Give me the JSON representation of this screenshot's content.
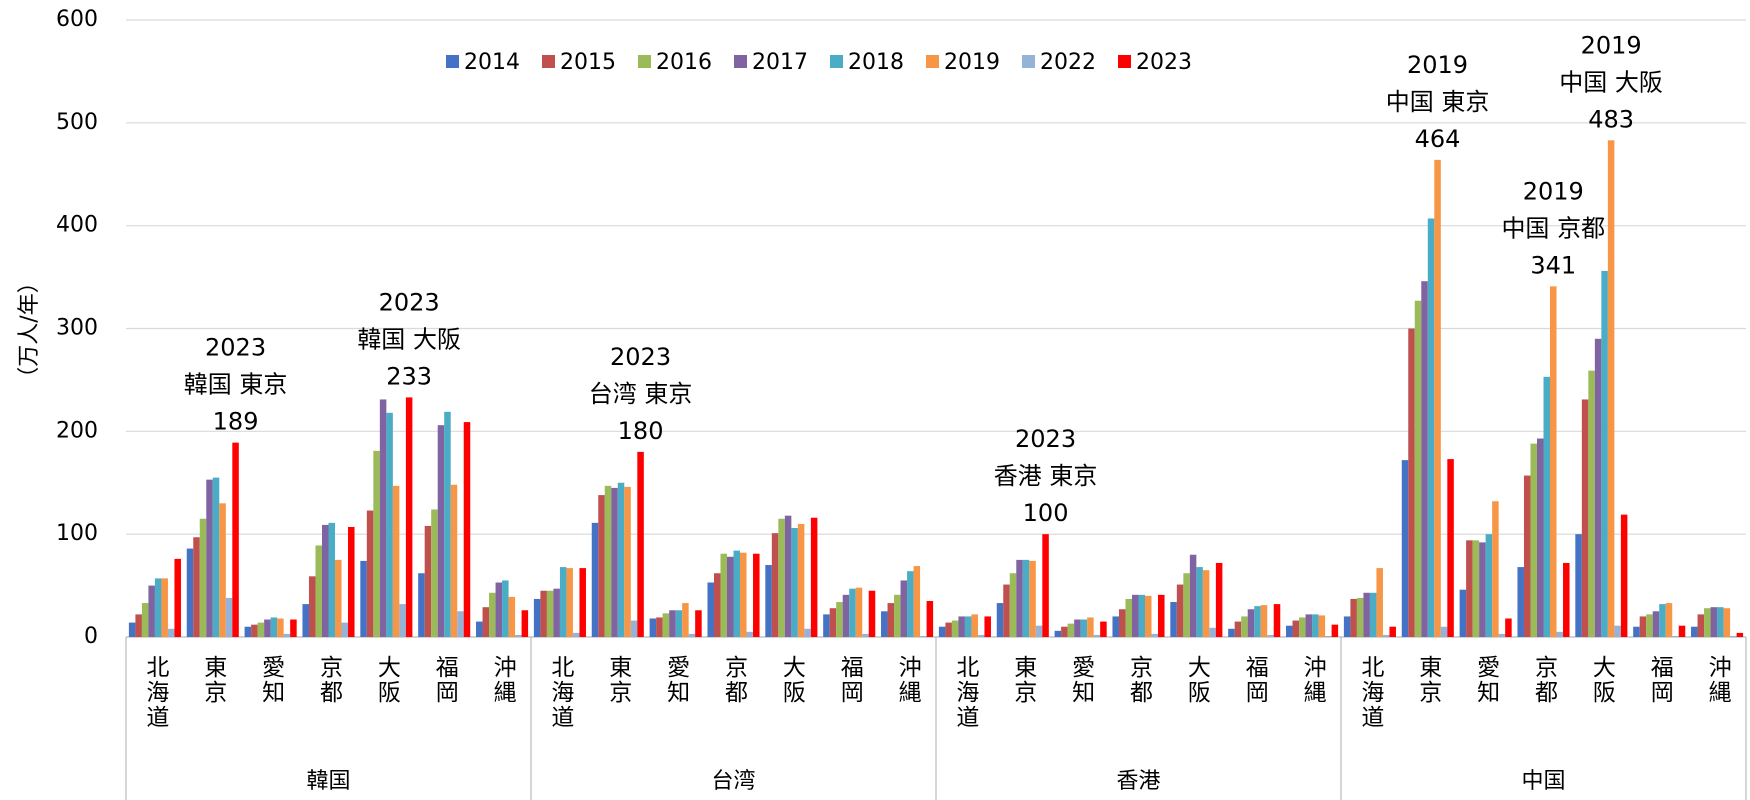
{
  "chart_data": {
    "type": "bar",
    "y_label": "（万人/年）",
    "category_groups": [
      "韓国",
      "台湾",
      "香港",
      "中国"
    ],
    "categories": [
      "北海道",
      "東京",
      "愛知",
      "京都",
      "大阪",
      "福岡",
      "沖縄",
      "北海道",
      "東京",
      "愛知",
      "京都",
      "大阪",
      "福岡",
      "沖縄",
      "北海道",
      "東京",
      "愛知",
      "京都",
      "大阪",
      "福岡",
      "沖縄",
      "北海道",
      "東京",
      "愛知",
      "京都",
      "大阪",
      "福岡",
      "沖縄"
    ],
    "series": [
      {
        "name": "2014",
        "color": "#4472c4",
        "values": [
          14,
          86,
          10,
          32,
          74,
          62,
          15,
          37,
          111,
          18,
          53,
          70,
          22,
          25,
          10,
          33,
          6,
          20,
          34,
          8,
          11,
          20,
          172,
          46,
          68,
          100,
          10,
          10
        ]
      },
      {
        "name": "2015",
        "color": "#c0504d",
        "values": [
          22,
          97,
          12,
          59,
          123,
          108,
          29,
          45,
          138,
          19,
          62,
          101,
          28,
          33,
          14,
          51,
          10,
          27,
          51,
          15,
          16,
          37,
          300,
          94,
          157,
          231,
          20,
          22
        ]
      },
      {
        "name": "2016",
        "color": "#9bbb59",
        "values": [
          33,
          115,
          14,
          89,
          181,
          124,
          43,
          45,
          147,
          23,
          81,
          115,
          34,
          41,
          16,
          62,
          13,
          37,
          62,
          20,
          19,
          38,
          327,
          94,
          188,
          259,
          22,
          28
        ]
      },
      {
        "name": "2017",
        "color": "#8064a2",
        "values": [
          50,
          153,
          17,
          109,
          231,
          206,
          53,
          47,
          145,
          26,
          78,
          118,
          41,
          55,
          20,
          75,
          17,
          41,
          80,
          27,
          22,
          43,
          346,
          92,
          193,
          290,
          25,
          29
        ]
      },
      {
        "name": "2018",
        "color": "#4bacc6",
        "values": [
          57,
          155,
          19,
          111,
          218,
          219,
          55,
          68,
          150,
          26,
          84,
          106,
          47,
          64,
          20,
          75,
          17,
          41,
          68,
          30,
          22,
          43,
          407,
          100,
          253,
          356,
          32,
          29
        ]
      },
      {
        "name": "2019",
        "color": "#f79646",
        "values": [
          57,
          130,
          18,
          75,
          147,
          148,
          39,
          67,
          146,
          33,
          82,
          110,
          48,
          69,
          22,
          74,
          19,
          40,
          65,
          31,
          21,
          67,
          464,
          132,
          341,
          483,
          33,
          28
        ]
      },
      {
        "name": "2022",
        "color": "#95b3d7",
        "values": [
          8,
          38,
          3,
          14,
          32,
          25,
          2,
          4,
          16,
          3,
          5,
          8,
          3,
          1,
          2,
          11,
          2,
          3,
          9,
          2,
          1,
          2,
          10,
          3,
          5,
          11,
          1,
          1
        ]
      },
      {
        "name": "2023",
        "color": "#ff0000",
        "values": [
          76,
          189,
          17,
          107,
          233,
          209,
          26,
          67,
          180,
          26,
          81,
          116,
          45,
          35,
          20,
          100,
          15,
          41,
          72,
          32,
          12,
          10,
          173,
          18,
          72,
          119,
          11,
          4
        ]
      }
    ],
    "ylim": [
      0,
      600
    ],
    "yticks": [
      0,
      100,
      200,
      300,
      400,
      500,
      600
    ],
    "grid": true,
    "legend": "top",
    "annotations": [
      {
        "lines": [
          "2023",
          "韓国 東京",
          "189"
        ],
        "color": "#ff0000"
      },
      {
        "lines": [
          "2023",
          "韓国 大阪",
          "233"
        ],
        "color": "#ff0000"
      },
      {
        "lines": [
          "2023",
          "台湾 東京",
          "180"
        ],
        "color": "#ff0000"
      },
      {
        "lines": [
          "2023",
          "香港 東京",
          "100"
        ],
        "color": "#ff0000"
      },
      {
        "lines": [
          "2019",
          "中国 東京",
          "464"
        ],
        "color": "#f0822d"
      },
      {
        "lines": [
          "2019",
          "中国 京都",
          "341"
        ],
        "color": "#f0822d"
      },
      {
        "lines": [
          "2019",
          "中国 大阪",
          "483"
        ],
        "color": "#f0822d"
      }
    ]
  }
}
